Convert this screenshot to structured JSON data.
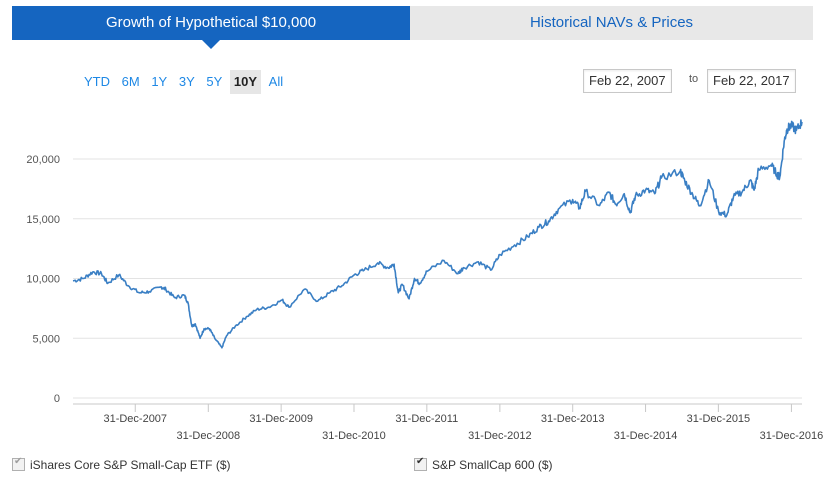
{
  "tabs": {
    "growth_label": "Growth of Hypothetical $10,000",
    "navs_label": "Historical NAVs & Prices"
  },
  "range_buttons": [
    "YTD",
    "6M",
    "1Y",
    "3Y",
    "5Y",
    "10Y",
    "All"
  ],
  "active_range": "10Y",
  "date_range": {
    "from": "Feb 22, 2007",
    "to_label": "to",
    "to": "Feb 22, 2017"
  },
  "legend": {
    "series1": "iShares Core S&P Small-Cap ETF ($)",
    "series2": "S&P SmallCap 600 ($)"
  },
  "colors": {
    "accent": "#1565c0",
    "line": "#3a7fc4",
    "link": "#1e88e5"
  },
  "chart_data": {
    "type": "line",
    "title": "",
    "xlabel": "",
    "ylabel": "",
    "xlim": [
      "2007-02-22",
      "2017-02-22"
    ],
    "ylim": [
      0,
      25000
    ],
    "y_ticks": [
      0,
      5000,
      10000,
      15000,
      20000
    ],
    "y_tick_labels": [
      "0",
      "5,000",
      "10,000",
      "15,000",
      "20,000"
    ],
    "x_ticks": [
      "2007-12-31",
      "2008-12-31",
      "2009-12-31",
      "2010-12-31",
      "2011-12-31",
      "2012-12-31",
      "2013-12-31",
      "2014-12-31",
      "2015-12-31",
      "2016-12-31"
    ],
    "x_tick_labels": [
      "31-Dec-2007",
      "31-Dec-2008",
      "31-Dec-2009",
      "31-Dec-2010",
      "31-Dec-2011",
      "31-Dec-2012",
      "31-Dec-2013",
      "31-Dec-2014",
      "31-Dec-2015",
      "31-Dec-2016"
    ],
    "grid": true,
    "series": [
      {
        "name": "iShares Core S&P Small-Cap ETF ($)",
        "x": [
          "2007-02-22",
          "2007-04-15",
          "2007-06-01",
          "2007-07-15",
          "2007-08-15",
          "2007-10-10",
          "2007-11-26",
          "2008-01-20",
          "2008-03-10",
          "2008-05-10",
          "2008-06-01",
          "2008-07-15",
          "2008-09-01",
          "2008-09-20",
          "2008-10-10",
          "2008-10-27",
          "2008-11-20",
          "2008-12-10",
          "2009-01-06",
          "2009-02-01",
          "2009-03-09",
          "2009-04-01",
          "2009-05-15",
          "2009-07-10",
          "2009-08-30",
          "2009-10-30",
          "2010-01-05",
          "2010-02-08",
          "2010-04-26",
          "2010-07-02",
          "2010-09-01",
          "2010-11-01",
          "2011-01-01",
          "2011-02-20",
          "2011-04-29",
          "2011-06-20",
          "2011-07-20",
          "2011-08-10",
          "2011-08-30",
          "2011-10-03",
          "2011-10-30",
          "2011-11-25",
          "2012-01-01",
          "2012-03-26",
          "2012-06-04",
          "2012-07-01",
          "2012-09-14",
          "2012-11-15",
          "2013-01-01",
          "2013-03-15",
          "2013-05-20",
          "2013-07-15",
          "2013-09-01",
          "2013-10-20",
          "2013-12-31",
          "2014-02-03",
          "2014-03-05",
          "2014-05-15",
          "2014-07-01",
          "2014-08-05",
          "2014-09-15",
          "2014-10-15",
          "2014-11-10",
          "2014-12-31",
          "2015-02-15",
          "2015-03-20",
          "2015-06-23",
          "2015-07-15",
          "2015-08-25",
          "2015-09-29",
          "2015-11-15",
          "2016-01-01",
          "2016-02-11",
          "2016-03-15",
          "2016-04-30",
          "2016-06-08",
          "2016-06-27",
          "2016-07-20",
          "2016-09-20",
          "2016-10-20",
          "2016-11-03",
          "2016-11-25",
          "2016-12-09",
          "2016-12-30",
          "2017-01-25",
          "2017-02-22"
        ],
        "values": [
          9800,
          10000,
          10550,
          10400,
          9600,
          10300,
          9400,
          8800,
          8900,
          9300,
          9100,
          8400,
          8600,
          8000,
          6000,
          6200,
          5000,
          5800,
          5800,
          5000,
          4200,
          5200,
          6000,
          6800,
          7400,
          7600,
          8200,
          7600,
          9100,
          8100,
          8800,
          9400,
          10300,
          10700,
          11300,
          10900,
          11200,
          8800,
          9500,
          8300,
          10000,
          9600,
          10600,
          11500,
          10400,
          10900,
          11400,
          10700,
          12000,
          12800,
          13500,
          14300,
          14800,
          15800,
          16600,
          15900,
          17300,
          16100,
          17200,
          16200,
          17100,
          15500,
          16900,
          17400,
          17100,
          18400,
          19000,
          18200,
          17000,
          16100,
          18200,
          15600,
          15300,
          16800,
          17300,
          18200,
          17400,
          19100,
          19500,
          18700,
          18500,
          21500,
          22500,
          22800,
          22400,
          23100
        ]
      }
    ]
  }
}
